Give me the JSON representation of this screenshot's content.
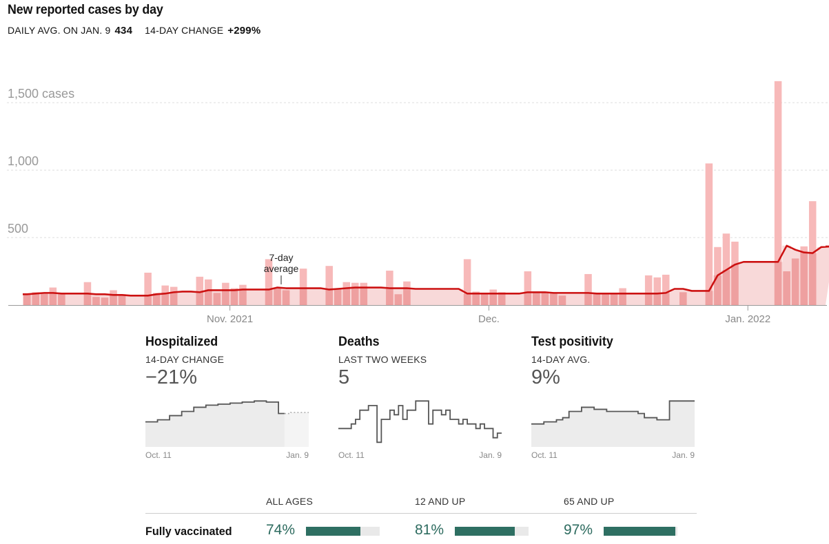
{
  "header": {
    "title": "New reported cases by day",
    "daily_avg_label": "DAILY AVG. ON JAN. 9",
    "daily_avg_value": "434",
    "change_label": "14-DAY CHANGE",
    "change_value": "+299%"
  },
  "colors": {
    "bar": "#f7b9b9",
    "bar_under_avg": "#eea0a0",
    "avg_fill": "#f8d9d9",
    "avg_line": "#cc1111",
    "panel_fill": "#ececec",
    "vacc_fill": "#2e6f62"
  },
  "chart_data": [
    {
      "type": "bar",
      "title": "New reported cases by day",
      "y_tick_labels": [
        "1,500 cases",
        "1,000",
        "500"
      ],
      "y_ticks": [
        1500,
        1000,
        500
      ],
      "ylim": [
        0,
        1700
      ],
      "x_tick_labels": [
        "Nov. 2021",
        "Dec.",
        "Jan. 2022"
      ],
      "x_tick_positions": [
        24,
        54,
        84
      ],
      "annotation": {
        "line1": "7-day",
        "line2": "average"
      },
      "grid": true,
      "values": [
        85,
        95,
        90,
        130,
        80,
        0,
        0,
        170,
        60,
        55,
        110,
        80,
        0,
        0,
        240,
        90,
        145,
        135,
        0,
        0,
        210,
        190,
        90,
        165,
        125,
        150,
        0,
        0,
        340,
        130,
        110,
        0,
        270,
        0,
        0,
        290,
        120,
        170,
        165,
        165,
        0,
        0,
        255,
        80,
        175,
        0,
        0,
        0,
        0,
        0,
        0,
        340,
        100,
        90,
        115,
        95,
        0,
        0,
        250,
        95,
        95,
        90,
        70,
        0,
        0,
        230,
        85,
        90,
        90,
        125,
        0,
        0,
        220,
        205,
        225,
        0,
        95,
        0,
        0,
        1050,
        430,
        530,
        470,
        0,
        0,
        0,
        0,
        1660,
        250,
        345,
        435,
        770,
        0
      ],
      "average": [
        80,
        85,
        90,
        90,
        85,
        85,
        85,
        85,
        80,
        80,
        75,
        75,
        70,
        70,
        70,
        80,
        85,
        95,
        100,
        100,
        95,
        110,
        110,
        110,
        110,
        115,
        115,
        115,
        115,
        130,
        125,
        125,
        125,
        125,
        125,
        115,
        120,
        125,
        130,
        130,
        130,
        130,
        125,
        125,
        125,
        120,
        120,
        120,
        120,
        120,
        120,
        85,
        85,
        85,
        85,
        85,
        85,
        85,
        95,
        95,
        95,
        90,
        90,
        90,
        90,
        90,
        85,
        85,
        85,
        85,
        85,
        85,
        85,
        85,
        90,
        120,
        120,
        105,
        105,
        105,
        220,
        260,
        300,
        320,
        320,
        320,
        320,
        320,
        440,
        410,
        390,
        385,
        430,
        434
      ]
    },
    {
      "type": "area",
      "title": "Hospitalized",
      "x_tick_labels": [
        "Oct. 11",
        "Jan. 9"
      ],
      "values": [
        12,
        12,
        13,
        13,
        15,
        15,
        17,
        17,
        19,
        19,
        20,
        20,
        20.5,
        20.5,
        21,
        21,
        21.5,
        21.5,
        22,
        22,
        21.5,
        21.5,
        16,
        16,
        16.5,
        16.5,
        16.5
      ],
      "projected_from_index": 23
    },
    {
      "type": "line",
      "title": "Deaths",
      "x_tick_labels": [
        "Oct. 11",
        "Jan. 9"
      ],
      "values": [
        2,
        2,
        2,
        2.5,
        3,
        4,
        4,
        4.5,
        4.5,
        0.5,
        3,
        3,
        4,
        3.5,
        4.5,
        3,
        4,
        4,
        5,
        5,
        5,
        2.5,
        4,
        4,
        3.5,
        4,
        3,
        3,
        2.5,
        3,
        2.5,
        2.5,
        2,
        2.5,
        2,
        2,
        1,
        1.5
      ]
    },
    {
      "type": "area",
      "title": "Test positivity",
      "x_tick_labels": [
        "Oct. 11",
        "Jan. 9"
      ],
      "values": [
        5.5,
        5.5,
        6,
        6,
        6.5,
        7,
        8.5,
        8.5,
        9.5,
        9.5,
        9,
        9,
        8.5,
        8.5,
        8.5,
        8.5,
        8.5,
        8,
        7,
        7,
        6.5,
        6.5,
        11,
        11,
        11,
        11
      ]
    }
  ],
  "panels": [
    {
      "title": "Hospitalized",
      "sub": "14-DAY CHANGE",
      "value": "−21%",
      "x_start": "Oct. 11",
      "x_end": "Jan. 9"
    },
    {
      "title": "Deaths",
      "sub": "LAST TWO WEEKS",
      "value": "5",
      "x_start": "Oct. 11",
      "x_end": "Jan. 9"
    },
    {
      "title": "Test positivity",
      "sub": "14-DAY AVG.",
      "value": "9%",
      "x_start": "Oct. 11",
      "x_end": "Jan. 9"
    }
  ],
  "vaccination": {
    "row_label": "Fully vaccinated",
    "columns": [
      {
        "header": "ALL AGES",
        "pct": "74%",
        "value": 0.74
      },
      {
        "header": "12 AND UP",
        "pct": "81%",
        "value": 0.81
      },
      {
        "header": "65 AND UP",
        "pct": "97%",
        "value": 0.97
      }
    ]
  }
}
